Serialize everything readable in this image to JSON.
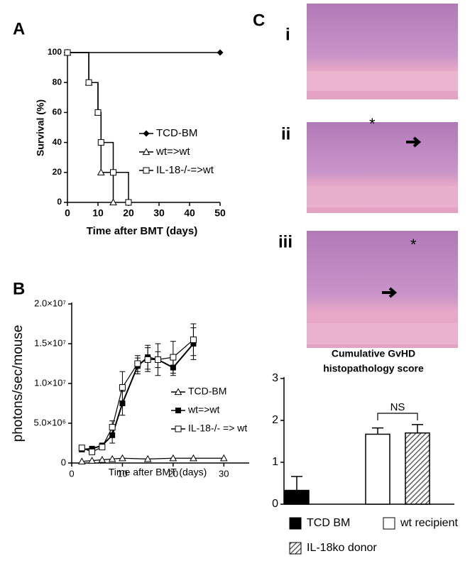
{
  "panel_labels": [
    "A",
    "B",
    "C"
  ],
  "images": {
    "labels": [
      "i",
      "ii",
      "iii"
    ],
    "annotations": [
      "*",
      "*"
    ]
  },
  "chart_data": [
    {
      "type": "step",
      "ylabel": "Survival (%)",
      "xlabel": "Time after BMT (days)",
      "xlim": [
        0,
        50
      ],
      "ylim": [
        0,
        100
      ],
      "xticks": [
        0,
        10,
        20,
        30,
        40,
        50
      ],
      "yticks": [
        0,
        20,
        40,
        60,
        80,
        100
      ],
      "series": [
        {
          "name": "TCD-BM",
          "color": "#000000",
          "marker": "diamond",
          "x": [
            0,
            50
          ],
          "values": [
            100,
            100
          ]
        },
        {
          "name": "wt=>wt",
          "color": "#000000",
          "marker": "triangle-open",
          "x": [
            0,
            7,
            10,
            11,
            15
          ],
          "values": [
            100,
            80,
            60,
            20,
            0
          ]
        },
        {
          "name": "IL-18-/-=>wt",
          "color": "#000000",
          "marker": "square-open",
          "x": [
            0,
            7,
            10,
            11,
            15,
            20
          ],
          "values": [
            100,
            80,
            60,
            40,
            20,
            0
          ]
        }
      ]
    },
    {
      "type": "line",
      "ylabel": "photons/sec/mouse",
      "xlabel": "Time after BMT (days)",
      "xlim": [
        0,
        35
      ],
      "ylim": [
        0,
        20000000
      ],
      "xticks": [
        0,
        10,
        20,
        30
      ],
      "yticks": [
        0,
        {
          "value": 5000000,
          "label": "5.0×10⁶"
        },
        {
          "value": 10000000,
          "label": "1.0×10⁷"
        },
        {
          "value": 15000000,
          "label": "1.5×10⁷"
        },
        {
          "value": 20000000,
          "label": "2.0×10⁷"
        }
      ],
      "series": [
        {
          "name": "TCD-BM",
          "color": "#000000",
          "marker": "triangle-open",
          "x": [
            2,
            4,
            6,
            8,
            10,
            15,
            20,
            24,
            30
          ],
          "values": [
            200000,
            300000,
            400000,
            500000,
            600000,
            500000,
            600000,
            600000,
            600000
          ]
        },
        {
          "name": "wt=>wt",
          "color": "#000000",
          "marker": "square",
          "x": [
            2,
            4,
            6,
            8,
            10,
            13,
            15,
            17,
            20,
            24
          ],
          "values": [
            1700000,
            1800000,
            2200000,
            3500000,
            7500000,
            12200000,
            13300000,
            13000000,
            12000000,
            15000000
          ],
          "errors": [
            300000,
            300000,
            300000,
            1000000,
            1500000,
            1000000,
            1500000,
            1000000,
            1000000,
            2000000
          ]
        },
        {
          "name": "IL-18-/- => wt",
          "color": "#000000",
          "marker": "square-open",
          "x": [
            2,
            4,
            6,
            8,
            10,
            13,
            15,
            17,
            20,
            24
          ],
          "values": [
            1900000,
            1400000,
            2000000,
            4500000,
            9500000,
            12500000,
            13000000,
            13000000,
            13300000,
            15500000
          ],
          "errors": [
            300000,
            300000,
            300000,
            800000,
            2000000,
            1000000,
            1500000,
            2000000,
            2000000,
            2000000
          ]
        }
      ]
    },
    {
      "type": "bar",
      "title": [
        "Cumulative GvHD",
        "histopathology score"
      ],
      "annotation": "NS",
      "ylim": [
        0,
        3
      ],
      "yticks": [
        0,
        1,
        2,
        3
      ],
      "categories": [
        "TCD BM",
        "wt recipient",
        "IL-18ko donor"
      ],
      "colors": [
        "#000000",
        "#ffffff",
        "hatch"
      ],
      "values": [
        0.33,
        1.67,
        1.7
      ],
      "errors": [
        0.33,
        0.15,
        0.2
      ]
    }
  ]
}
